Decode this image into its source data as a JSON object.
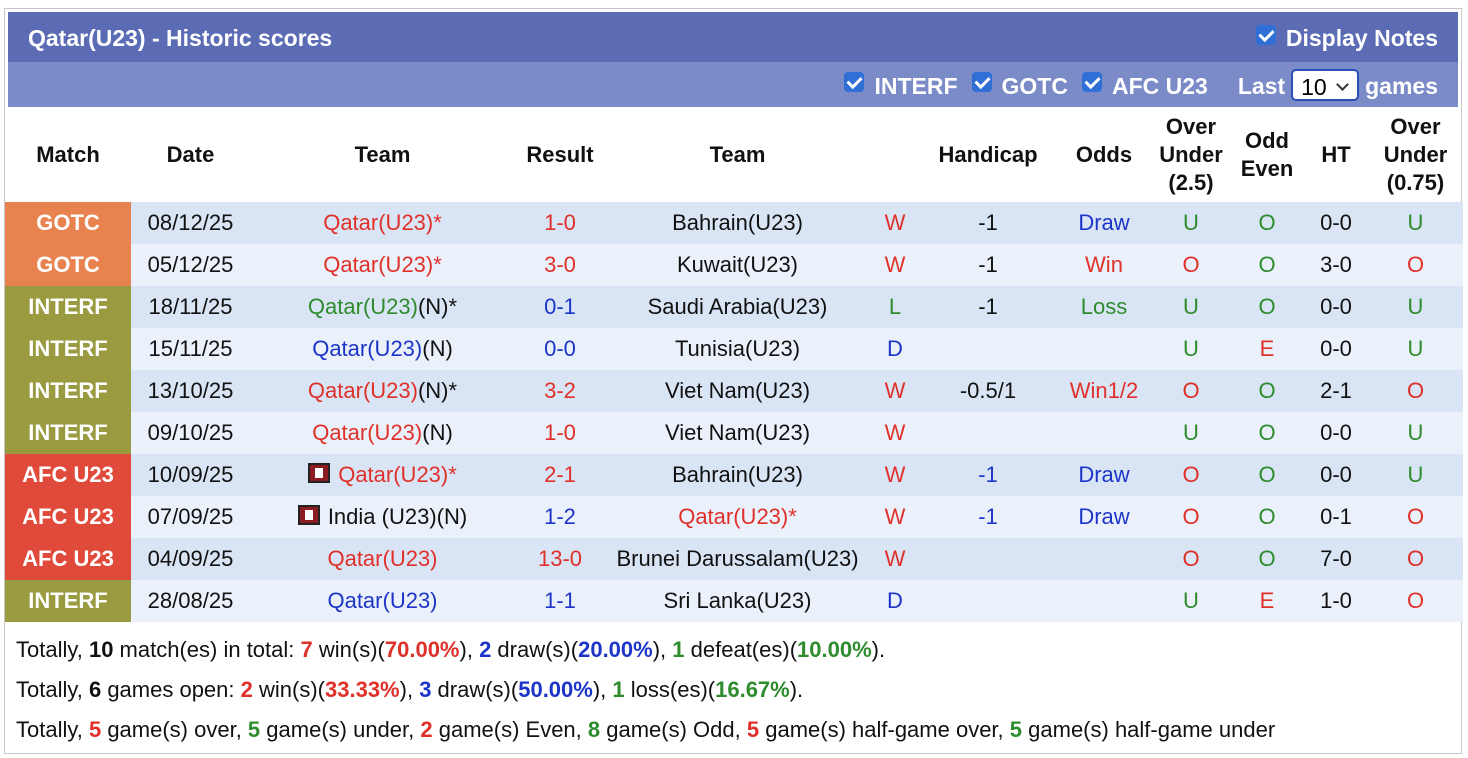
{
  "header": {
    "title": "Qatar(U23) - Historic scores",
    "display_notes": "Display Notes",
    "filters": [
      "INTERF",
      "GOTC",
      "AFC U23"
    ],
    "last_label": "Last",
    "last_value": "10",
    "games_label": "games"
  },
  "palette": {
    "red": "#e0302a",
    "blue": "#1c35c8",
    "green": "#2e8b2e",
    "black": "#111111",
    "orange": "#e8834f",
    "olive": "#9a9a40",
    "afc": "#e04a3a"
  },
  "table": {
    "columns": [
      "Match",
      "Date",
      "Team",
      "Result",
      "Team",
      null,
      "Handicap",
      "Odds",
      "Over Under (2.5)",
      "Odd Even",
      "HT",
      "Over Under (0.75)"
    ],
    "rows": [
      {
        "match": {
          "text": "GOTC",
          "color": "orange"
        },
        "date": {
          "text": "08/12/25",
          "color": "black"
        },
        "home": {
          "text": "Qatar(U23)*",
          "color": "red"
        },
        "result": {
          "text": "1-0",
          "color": "red"
        },
        "away": {
          "text": "Bahrain(U23)",
          "color": "black"
        },
        "outcome": {
          "text": "W",
          "color": "red"
        },
        "handicap": {
          "text": "-1",
          "color": "black"
        },
        "odds": {
          "text": "Draw",
          "color": "blue"
        },
        "ou": {
          "text": "U",
          "color": "green"
        },
        "oe": {
          "text": "O",
          "color": "green"
        },
        "ht": {
          "text": "0-0",
          "color": "black"
        },
        "ou075": {
          "text": "U",
          "color": "green"
        }
      },
      {
        "match": {
          "text": "GOTC",
          "color": "orange"
        },
        "date": {
          "text": "05/12/25",
          "color": "black"
        },
        "home": {
          "text": "Qatar(U23)*",
          "color": "red"
        },
        "result": {
          "text": "3-0",
          "color": "red"
        },
        "away": {
          "text": "Kuwait(U23)",
          "color": "black"
        },
        "outcome": {
          "text": "W",
          "color": "red"
        },
        "handicap": {
          "text": "-1",
          "color": "black"
        },
        "odds": {
          "text": "Win",
          "color": "red"
        },
        "ou": {
          "text": "O",
          "color": "red"
        },
        "oe": {
          "text": "O",
          "color": "green"
        },
        "ht": {
          "text": "3-0",
          "color": "black"
        },
        "ou075": {
          "text": "O",
          "color": "red"
        }
      },
      {
        "match": {
          "text": "INTERF",
          "color": "olive"
        },
        "date": {
          "text": "18/11/25",
          "color": "black"
        },
        "home": {
          "text": "Qatar(U23)",
          "color": "green",
          "suffix": "(N)*"
        },
        "result": {
          "text": "0-1",
          "color": "blue"
        },
        "away": {
          "text": "Saudi Arabia(U23)",
          "color": "black"
        },
        "outcome": {
          "text": "L",
          "color": "green"
        },
        "handicap": {
          "text": "-1",
          "color": "black"
        },
        "odds": {
          "text": "Loss",
          "color": "green"
        },
        "ou": {
          "text": "U",
          "color": "green"
        },
        "oe": {
          "text": "O",
          "color": "green"
        },
        "ht": {
          "text": "0-0",
          "color": "black"
        },
        "ou075": {
          "text": "U",
          "color": "green"
        }
      },
      {
        "match": {
          "text": "INTERF",
          "color": "olive"
        },
        "date": {
          "text": "15/11/25",
          "color": "black"
        },
        "home": {
          "text": "Qatar(U23)",
          "color": "blue",
          "suffix": "(N)"
        },
        "result": {
          "text": "0-0",
          "color": "blue"
        },
        "away": {
          "text": "Tunisia(U23)",
          "color": "black"
        },
        "outcome": {
          "text": "D",
          "color": "blue"
        },
        "handicap": null,
        "odds": null,
        "ou": {
          "text": "U",
          "color": "green"
        },
        "oe": {
          "text": "E",
          "color": "red"
        },
        "ht": {
          "text": "0-0",
          "color": "black"
        },
        "ou075": {
          "text": "U",
          "color": "green"
        }
      },
      {
        "match": {
          "text": "INTERF",
          "color": "olive"
        },
        "date": {
          "text": "13/10/25",
          "color": "black"
        },
        "home": {
          "text": "Qatar(U23)",
          "color": "red",
          "suffix": "(N)*"
        },
        "result": {
          "text": "3-2",
          "color": "red"
        },
        "away": {
          "text": "Viet Nam(U23)",
          "color": "black"
        },
        "outcome": {
          "text": "W",
          "color": "red"
        },
        "handicap": {
          "text": "-0.5/1",
          "color": "black"
        },
        "odds": {
          "text": "Win1/2",
          "color": "red"
        },
        "ou": {
          "text": "O",
          "color": "red"
        },
        "oe": {
          "text": "O",
          "color": "green"
        },
        "ht": {
          "text": "2-1",
          "color": "black"
        },
        "ou075": {
          "text": "O",
          "color": "red"
        }
      },
      {
        "match": {
          "text": "INTERF",
          "color": "olive"
        },
        "date": {
          "text": "09/10/25",
          "color": "black"
        },
        "home": {
          "text": "Qatar(U23)",
          "color": "red",
          "suffix": "(N)"
        },
        "result": {
          "text": "1-0",
          "color": "red"
        },
        "away": {
          "text": "Viet Nam(U23)",
          "color": "black"
        },
        "outcome": {
          "text": "W",
          "color": "red"
        },
        "handicap": null,
        "odds": null,
        "ou": {
          "text": "U",
          "color": "green"
        },
        "oe": {
          "text": "O",
          "color": "green"
        },
        "ht": {
          "text": "0-0",
          "color": "black"
        },
        "ou075": {
          "text": "U",
          "color": "green"
        }
      },
      {
        "match": {
          "text": "AFC U23",
          "color": "afc"
        },
        "date": {
          "text": "10/09/25",
          "color": "black"
        },
        "home": {
          "text": "Qatar(U23)*",
          "color": "red",
          "flag": true
        },
        "result": {
          "text": "2-1",
          "color": "red"
        },
        "away": {
          "text": "Bahrain(U23)",
          "color": "black"
        },
        "outcome": {
          "text": "W",
          "color": "red"
        },
        "handicap": {
          "text": "-1",
          "color": "blue"
        },
        "odds": {
          "text": "Draw",
          "color": "blue"
        },
        "ou": {
          "text": "O",
          "color": "red"
        },
        "oe": {
          "text": "O",
          "color": "green"
        },
        "ht": {
          "text": "0-0",
          "color": "black"
        },
        "ou075": {
          "text": "U",
          "color": "green"
        }
      },
      {
        "match": {
          "text": "AFC U23",
          "color": "afc"
        },
        "date": {
          "text": "07/09/25",
          "color": "black"
        },
        "home": {
          "text": "India (U23)(N)",
          "color": "black",
          "flag": true
        },
        "result": {
          "text": "1-2",
          "color": "blue"
        },
        "away": {
          "text": "Qatar(U23)*",
          "color": "red"
        },
        "outcome": {
          "text": "W",
          "color": "red"
        },
        "handicap": {
          "text": "-1",
          "color": "blue"
        },
        "odds": {
          "text": "Draw",
          "color": "blue"
        },
        "ou": {
          "text": "O",
          "color": "red"
        },
        "oe": {
          "text": "O",
          "color": "green"
        },
        "ht": {
          "text": "0-1",
          "color": "black"
        },
        "ou075": {
          "text": "O",
          "color": "red"
        }
      },
      {
        "match": {
          "text": "AFC U23",
          "color": "afc"
        },
        "date": {
          "text": "04/09/25",
          "color": "black"
        },
        "home": {
          "text": "Qatar(U23)",
          "color": "red"
        },
        "result": {
          "text": "13-0",
          "color": "red"
        },
        "away": {
          "text": "Brunei Darussalam(U23)",
          "color": "black"
        },
        "outcome": {
          "text": "W",
          "color": "red"
        },
        "handicap": null,
        "odds": null,
        "ou": {
          "text": "O",
          "color": "red"
        },
        "oe": {
          "text": "O",
          "color": "green"
        },
        "ht": {
          "text": "7-0",
          "color": "black"
        },
        "ou075": {
          "text": "O",
          "color": "red"
        }
      },
      {
        "match": {
          "text": "INTERF",
          "color": "olive"
        },
        "date": {
          "text": "28/08/25",
          "color": "black"
        },
        "home": {
          "text": "Qatar(U23)",
          "color": "blue"
        },
        "result": {
          "text": "1-1",
          "color": "blue"
        },
        "away": {
          "text": "Sri Lanka(U23)",
          "color": "black"
        },
        "outcome": {
          "text": "D",
          "color": "blue"
        },
        "handicap": null,
        "odds": null,
        "ou": {
          "text": "U",
          "color": "green"
        },
        "oe": {
          "text": "E",
          "color": "red"
        },
        "ht": {
          "text": "1-0",
          "color": "black"
        },
        "ou075": {
          "text": "O",
          "color": "red"
        }
      }
    ]
  },
  "summary": [
    [
      {
        "text": "Totally, "
      },
      {
        "text": "10",
        "bold": true
      },
      {
        "text": " match(es) in total: "
      },
      {
        "text": "7",
        "color": "red",
        "bold": true
      },
      {
        "text": " win(s)("
      },
      {
        "text": "70.00%",
        "color": "red",
        "bold": true
      },
      {
        "text": "), "
      },
      {
        "text": "2",
        "color": "blue",
        "bold": true
      },
      {
        "text": " draw(s)("
      },
      {
        "text": "20.00%",
        "color": "blue",
        "bold": true
      },
      {
        "text": "), "
      },
      {
        "text": "1",
        "color": "green",
        "bold": true
      },
      {
        "text": " defeat(es)("
      },
      {
        "text": "10.00%",
        "color": "green",
        "bold": true
      },
      {
        "text": ")."
      }
    ],
    [
      {
        "text": "Totally, "
      },
      {
        "text": "6",
        "bold": true
      },
      {
        "text": " games open: "
      },
      {
        "text": "2",
        "color": "red",
        "bold": true
      },
      {
        "text": " win(s)("
      },
      {
        "text": "33.33%",
        "color": "red",
        "bold": true
      },
      {
        "text": "), "
      },
      {
        "text": "3",
        "color": "blue",
        "bold": true
      },
      {
        "text": " draw(s)("
      },
      {
        "text": "50.00%",
        "color": "blue",
        "bold": true
      },
      {
        "text": "), "
      },
      {
        "text": "1",
        "color": "green",
        "bold": true
      },
      {
        "text": " loss(es)("
      },
      {
        "text": "16.67%",
        "color": "green",
        "bold": true
      },
      {
        "text": ")."
      }
    ],
    [
      {
        "text": "Totally, "
      },
      {
        "text": "5",
        "color": "red",
        "bold": true
      },
      {
        "text": " game(s) over, "
      },
      {
        "text": "5",
        "color": "green",
        "bold": true
      },
      {
        "text": " game(s) under, "
      },
      {
        "text": "2",
        "color": "red",
        "bold": true
      },
      {
        "text": " game(s) Even, "
      },
      {
        "text": "8",
        "color": "green",
        "bold": true
      },
      {
        "text": " game(s) Odd, "
      },
      {
        "text": "5",
        "color": "red",
        "bold": true
      },
      {
        "text": " game(s) half-game over, "
      },
      {
        "text": "5",
        "color": "green",
        "bold": true
      },
      {
        "text": " game(s) half-game under"
      }
    ]
  ]
}
